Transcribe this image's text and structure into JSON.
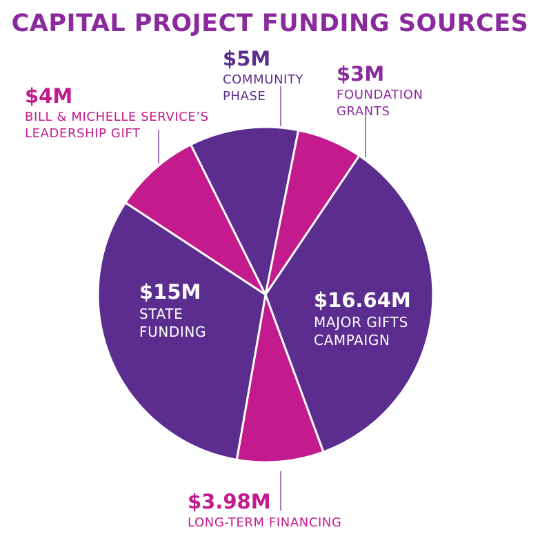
{
  "title": "CAPITAL PROJECT FUNDING SOURCES",
  "colors": {
    "title": "#8a2a9c",
    "purple": "#5b2d8e",
    "magenta": "#c31a8d",
    "leader": "#8a4aa0"
  },
  "chart_data": {
    "type": "pie",
    "title": "CAPITAL PROJECT FUNDING SOURCES",
    "units": "USD millions",
    "slices": [
      {
        "value": 16.64,
        "amount": "$16.64M",
        "lines": [
          "MAJOR GIFTS",
          "CAMPAIGN"
        ],
        "color": "#5b2d8e"
      },
      {
        "value": 3.98,
        "amount": "$3.98M",
        "lines": [
          "LONG-TERM FINANCING"
        ],
        "color": "#c31a8d"
      },
      {
        "value": 15,
        "amount": "$15M",
        "lines": [
          "STATE",
          "FUNDING"
        ],
        "color": "#5b2d8e"
      },
      {
        "value": 4,
        "amount": "$4M",
        "lines": [
          "BILL & MICHELLE SERVICE’S",
          "LEADERSHIP GIFT"
        ],
        "color": "#c31a8d"
      },
      {
        "value": 5,
        "amount": "$5M",
        "lines": [
          "COMMUNITY",
          "PHASE"
        ],
        "color": "#5b2d8e"
      },
      {
        "value": 3,
        "amount": "$3M",
        "lines": [
          "FOUNDATION",
          "GRANTS"
        ],
        "color": "#c31a8d"
      }
    ]
  }
}
